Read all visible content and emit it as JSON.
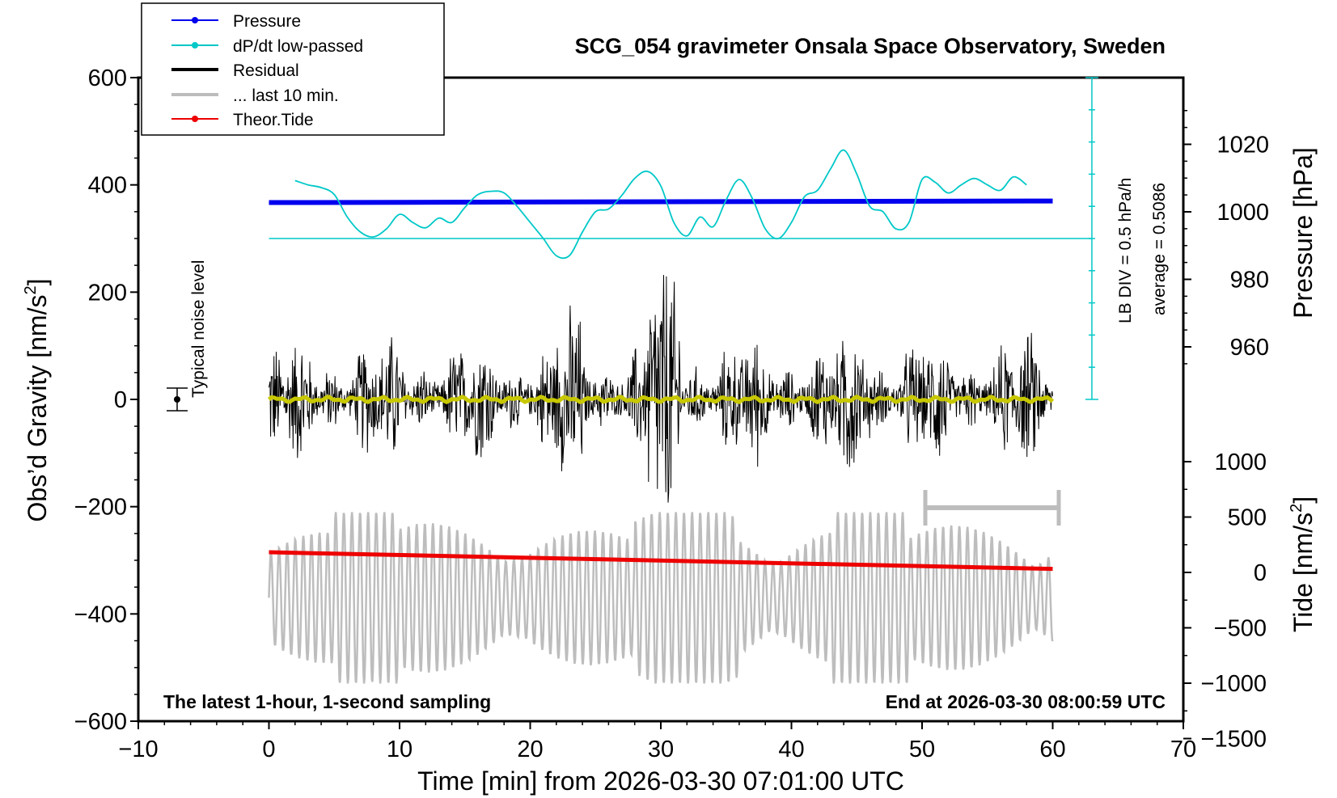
{
  "chart_data": {
    "type": "line",
    "title": "SCG_054 gravimeter Onsala Space Observatory, Sweden",
    "xlabel": "Time [min] from 2026-03-30 07:01:00 UTC",
    "ylabel": "Obs'd Gravity [nm/s²]",
    "ylabel_base": "Obs’d Gravity [nm/s",
    "ylabel_sup": "2",
    "ylabel_end": "]",
    "y2label": "Pressure [hPa]",
    "y3label_base": "Tide [nm/s",
    "y3label_sup": "2",
    "y3label_end": "]",
    "xlim": [
      -10,
      70
    ],
    "ylim": [
      -600,
      600
    ],
    "xticks": [
      -10,
      0,
      10,
      20,
      30,
      40,
      50,
      60,
      70
    ],
    "xtick_labels": [
      "−10",
      "0",
      "10",
      "20",
      "30",
      "40",
      "50",
      "60",
      "70"
    ],
    "yticks": [
      -600,
      -400,
      -200,
      0,
      200,
      400,
      600
    ],
    "ytick_labels": [
      "−600",
      "−400",
      "−200",
      "0",
      "200",
      "400",
      "600"
    ],
    "pressure_ticks": [
      960,
      980,
      1000,
      1020
    ],
    "pressure_tick_labels": [
      "960",
      "980",
      "1000",
      "1020"
    ],
    "tide_ticks": [
      -1500,
      -1000,
      -500,
      0,
      500,
      1000
    ],
    "tide_tick_labels": [
      "−1500",
      "−1000",
      "−500",
      "0",
      "500",
      "1000"
    ],
    "legend": [
      {
        "label": "Pressure",
        "color": "#0000ee",
        "marker": true,
        "width": 2
      },
      {
        "label": "dP/dt low-passed",
        "color": "#00c8c8",
        "marker": true,
        "width": 2
      },
      {
        "label": "Residual",
        "color": "#000000",
        "marker": false,
        "width": 4
      },
      {
        "label": "... last 10 min.",
        "color": "#bdbdbd",
        "marker": false,
        "width": 4
      },
      {
        "label": "Theor.Tide",
        "color": "#ee0000",
        "marker": true,
        "width": 2
      }
    ],
    "series": [
      {
        "name": "Pressure",
        "color": "#0000ee",
        "x": [
          0,
          60
        ],
        "y": [
          367,
          370
        ]
      },
      {
        "name": "Theor.Tide",
        "color": "#ee0000",
        "x": [
          0,
          60
        ],
        "y": [
          -285,
          -316
        ]
      },
      {
        "name": "dP/dt low-passed",
        "color": "#00c8c8",
        "baseline": 300,
        "x": [
          2,
          3,
          4,
          5,
          6,
          7,
          8,
          9,
          10,
          11,
          12,
          13,
          14,
          15,
          16,
          17,
          18,
          19,
          20,
          21,
          22,
          23,
          24,
          25,
          26,
          27,
          28,
          29,
          30,
          31,
          32,
          33,
          34,
          35,
          36,
          37,
          38,
          39,
          40,
          41,
          42,
          43,
          44,
          45,
          46,
          47,
          48,
          49,
          50,
          51,
          52,
          53,
          54,
          55,
          56,
          57,
          58
        ],
        "y": [
          408,
          400,
          395,
          382,
          340,
          312,
          303,
          318,
          345,
          330,
          320,
          338,
          330,
          358,
          382,
          388,
          385,
          360,
          330,
          300,
          268,
          268,
          312,
          350,
          355,
          380,
          412,
          425,
          398,
          330,
          305,
          340,
          322,
          372,
          410,
          375,
          318,
          300,
          330,
          378,
          390,
          430,
          465,
          420,
          360,
          350,
          318,
          330,
          410,
          405,
          385,
          400,
          412,
          400,
          390,
          415,
          400
        ]
      },
      {
        "name": "Residual",
        "color": "#000000",
        "y_envelope": [
          -220,
          232
        ]
      },
      {
        "name": "... last 10 min.",
        "color": "#bdbdbd",
        "x_range": [
          0,
          60
        ],
        "y_range": [
          -530,
          -210
        ]
      }
    ]
  },
  "annotations": {
    "noise_label": "Typical noise level",
    "pressure_scale": "LB DIV = 0.5 hPa/h",
    "pressure_average": "average = 0.5086",
    "footer_left": "The latest 1-hour, 1-second sampling",
    "footer_right": "End at 2026-03-30 08:00:59 UTC"
  }
}
